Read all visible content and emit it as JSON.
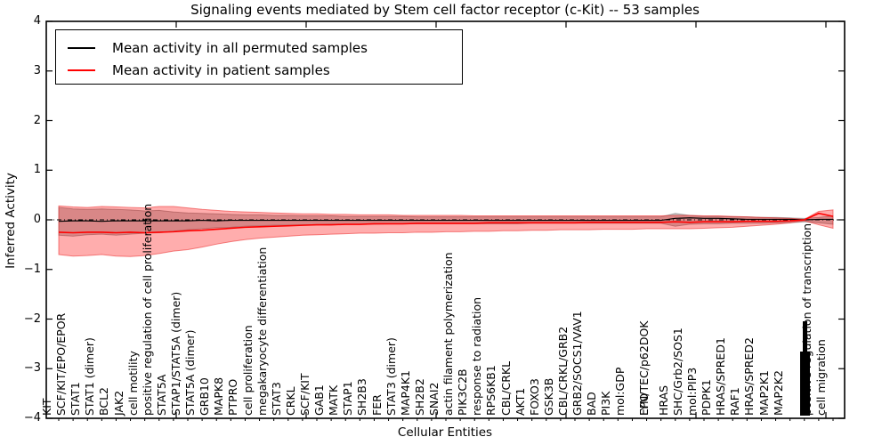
{
  "title": "Signaling events mediated by Stem cell factor receptor (c-Kit) -- 53 samples",
  "legend": {
    "items": [
      {
        "label": "Mean activity in all permuted samples",
        "color": "#000000"
      },
      {
        "label": "Mean activity in patient samples",
        "color": "#ff0000"
      }
    ]
  },
  "chart_data": {
    "type": "line",
    "title": "Signaling events mediated by Stem cell factor receptor (c-Kit) -- 53 samples",
    "xlabel": "Cellular Entities",
    "ylabel": "Inferred Activity",
    "ylim": [
      -4,
      4
    ],
    "y_tick_labels": [
      "4",
      "3",
      "2",
      "1",
      "0",
      "−1",
      "−2",
      "−3",
      "−4"
    ],
    "y_tick_values": [
      4,
      3,
      2,
      1,
      0,
      -1,
      -2,
      -3,
      -4
    ],
    "grid": false,
    "legend_position": "upper left",
    "zero_line_style": "dashdot",
    "entities": [
      "KIT",
      "SCF/KIT/EPO/EPOR",
      "STAT1",
      "STAT1 (dimer)",
      "BCL2",
      "JAK2",
      "cell motility",
      "positive regulation of cell proliferation",
      "STAT5A",
      "STAP1/STAT5A (dimer)",
      "STAT5A (dimer)",
      "GRB10",
      "MAPK8",
      "PTPRO",
      "cell proliferation",
      "megakaryocyte differentiation",
      "STAT3",
      "CRKL",
      "SCF/KIT",
      "GAB1",
      "MATK",
      "STAP1",
      "SH2B3",
      "FER",
      "STAT3 (dimer)",
      "MAP4K1",
      "SH2B2",
      "SNAI2",
      "actin filament polymerization",
      "PIK3C2B",
      "response to radiation",
      "RPS6KB1",
      "CBL/CRKL",
      "AKT1",
      "FOXO3",
      "GSK3B",
      "CBL/CRKL/GRB2",
      "GRB2/SOCS1/VAV1",
      "BAD",
      "PI3K",
      "mol:GDP",
      "EPO",
      "LYN/TEC/p62DOK",
      "HRAS",
      "SHC/Grb2/SOS1",
      "mol:PIP3",
      "PDPK1",
      "HRAS/SPRED1",
      "RAF1",
      "HRAS/SPRED2",
      "MAP2K1",
      "MAP2K2",
      "",
      "positive regulation of transcription",
      "cell migration"
    ],
    "illegible_cluster_index": 52,
    "series": [
      {
        "name": "Mean activity in all permuted samples",
        "color": "#000000",
        "values": [
          -0.03,
          -0.02,
          -0.02,
          -0.03,
          -0.02,
          -0.02,
          -0.02,
          -0.02,
          -0.02,
          -0.02,
          -0.01,
          -0.02,
          -0.01,
          -0.01,
          -0.01,
          -0.01,
          -0.01,
          -0.01,
          -0.01,
          -0.01,
          -0.01,
          -0.01,
          -0.01,
          -0.01,
          -0.01,
          -0.01,
          -0.01,
          -0.01,
          -0.01,
          -0.01,
          -0.01,
          -0.01,
          -0.01,
          -0.01,
          -0.01,
          -0.01,
          -0.01,
          -0.01,
          -0.01,
          -0.01,
          -0.01,
          -0.01,
          -0.01,
          0.03,
          0.04,
          0.03,
          0.03,
          0.02,
          0.01,
          0.01,
          0.01,
          0.01,
          0.0,
          0.01,
          0.01
        ]
      },
      {
        "name": "Mean activity in patient samples",
        "color": "#ff0000",
        "values": [
          -0.25,
          -0.26,
          -0.25,
          -0.25,
          -0.26,
          -0.25,
          -0.26,
          -0.25,
          -0.24,
          -0.22,
          -0.21,
          -0.19,
          -0.17,
          -0.15,
          -0.14,
          -0.13,
          -0.12,
          -0.11,
          -0.1,
          -0.1,
          -0.09,
          -0.09,
          -0.08,
          -0.08,
          -0.08,
          -0.07,
          -0.07,
          -0.07,
          -0.07,
          -0.07,
          -0.06,
          -0.06,
          -0.06,
          -0.06,
          -0.06,
          -0.06,
          -0.06,
          -0.05,
          -0.05,
          -0.05,
          -0.05,
          -0.05,
          -0.05,
          -0.04,
          -0.05,
          -0.04,
          -0.04,
          -0.04,
          -0.03,
          -0.03,
          -0.03,
          -0.02,
          0.0,
          0.13,
          0.07
        ]
      }
    ],
    "bands": [
      {
        "name": "permuted samples band",
        "color": "rgba(0,0,0,0.22)",
        "edge_color": "rgba(0,0,0,0.28)",
        "upper": [
          0.25,
          0.22,
          0.21,
          0.22,
          0.21,
          0.2,
          0.18,
          0.19,
          0.16,
          0.14,
          0.13,
          0.12,
          0.11,
          0.1,
          0.1,
          0.09,
          0.09,
          0.08,
          0.08,
          0.08,
          0.07,
          0.07,
          0.07,
          0.07,
          0.07,
          0.06,
          0.06,
          0.06,
          0.06,
          0.06,
          0.06,
          0.06,
          0.06,
          0.06,
          0.06,
          0.06,
          0.06,
          0.06,
          0.06,
          0.06,
          0.06,
          0.06,
          0.06,
          0.13,
          0.09,
          0.07,
          0.07,
          0.06,
          0.06,
          0.05,
          0.05,
          0.04,
          0.03,
          0.05,
          0.08
        ],
        "lower": [
          -0.31,
          -0.33,
          -0.3,
          -0.29,
          -0.31,
          -0.29,
          -0.27,
          -0.26,
          -0.23,
          -0.2,
          -0.18,
          -0.16,
          -0.15,
          -0.13,
          -0.12,
          -0.11,
          -0.11,
          -0.1,
          -0.1,
          -0.09,
          -0.09,
          -0.09,
          -0.09,
          -0.08,
          -0.08,
          -0.08,
          -0.08,
          -0.08,
          -0.08,
          -0.08,
          -0.08,
          -0.08,
          -0.08,
          -0.07,
          -0.07,
          -0.07,
          -0.07,
          -0.07,
          -0.07,
          -0.07,
          -0.07,
          -0.07,
          -0.07,
          -0.13,
          -0.09,
          -0.08,
          -0.08,
          -0.07,
          -0.07,
          -0.07,
          -0.06,
          -0.06,
          -0.04,
          -0.06,
          -0.09
        ]
      },
      {
        "name": "patient samples band",
        "color": "rgba(255,0,0,0.32)",
        "edge_color": "rgba(235,40,40,0.55)",
        "upper": [
          0.28,
          0.26,
          0.25,
          0.27,
          0.26,
          0.25,
          0.24,
          0.27,
          0.27,
          0.24,
          0.21,
          0.19,
          0.17,
          0.16,
          0.15,
          0.14,
          0.13,
          0.12,
          0.12,
          0.11,
          0.11,
          0.1,
          0.1,
          0.1,
          0.09,
          0.09,
          0.09,
          0.09,
          0.09,
          0.08,
          0.08,
          0.08,
          0.08,
          0.08,
          0.08,
          0.08,
          0.08,
          0.08,
          0.08,
          0.08,
          0.08,
          0.08,
          0.08,
          0.09,
          0.09,
          0.08,
          0.08,
          0.07,
          0.06,
          0.05,
          0.04,
          0.03,
          0.01,
          0.17,
          0.2
        ],
        "lower": [
          -0.7,
          -0.73,
          -0.72,
          -0.7,
          -0.73,
          -0.74,
          -0.72,
          -0.68,
          -0.63,
          -0.6,
          -0.55,
          -0.49,
          -0.44,
          -0.4,
          -0.37,
          -0.35,
          -0.33,
          -0.31,
          -0.3,
          -0.29,
          -0.28,
          -0.27,
          -0.27,
          -0.26,
          -0.26,
          -0.25,
          -0.25,
          -0.24,
          -0.24,
          -0.23,
          -0.23,
          -0.22,
          -0.22,
          -0.21,
          -0.21,
          -0.2,
          -0.2,
          -0.2,
          -0.19,
          -0.19,
          -0.19,
          -0.18,
          -0.18,
          -0.18,
          -0.18,
          -0.17,
          -0.16,
          -0.15,
          -0.13,
          -0.11,
          -0.09,
          -0.06,
          -0.02,
          -0.1,
          -0.17
        ]
      }
    ]
  }
}
